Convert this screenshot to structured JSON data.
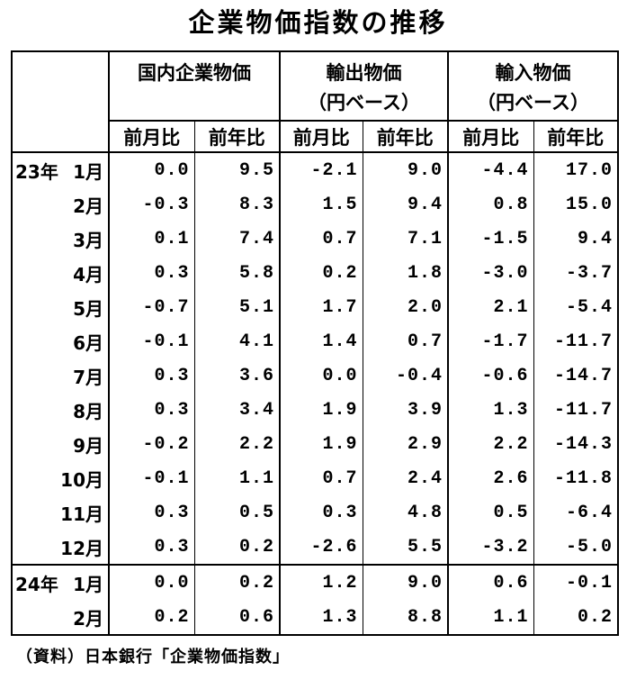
{
  "title": "企業物価指数の推移",
  "table": {
    "groups": [
      {
        "line1": "国内企業物価",
        "line2": ""
      },
      {
        "line1": "輸出物価",
        "line2": "（円ベース）"
      },
      {
        "line1": "輸入物価",
        "line2": "（円ベース）"
      }
    ],
    "sub_headers": [
      "前月比",
      "前年比",
      "前月比",
      "前年比",
      "前月比",
      "前年比"
    ],
    "rows": [
      {
        "year": "23年",
        "month": "1月",
        "values": [
          "0.0",
          "9.5",
          "-2.1",
          "9.0",
          "-4.4",
          "17.0"
        ]
      },
      {
        "year": "",
        "month": "2月",
        "values": [
          "-0.3",
          "8.3",
          "1.5",
          "9.4",
          "0.8",
          "15.0"
        ]
      },
      {
        "year": "",
        "month": "3月",
        "values": [
          "0.1",
          "7.4",
          "0.7",
          "7.1",
          "-1.5",
          "9.4"
        ]
      },
      {
        "year": "",
        "month": "4月",
        "values": [
          "0.3",
          "5.8",
          "0.2",
          "1.8",
          "-3.0",
          "-3.7"
        ]
      },
      {
        "year": "",
        "month": "5月",
        "values": [
          "-0.7",
          "5.1",
          "1.7",
          "2.0",
          "2.1",
          "-5.4"
        ]
      },
      {
        "year": "",
        "month": "6月",
        "values": [
          "-0.1",
          "4.1",
          "1.4",
          "0.7",
          "-1.7",
          "-11.7"
        ]
      },
      {
        "year": "",
        "month": "7月",
        "values": [
          "0.3",
          "3.6",
          "0.0",
          "-0.4",
          "-0.6",
          "-14.7"
        ]
      },
      {
        "year": "",
        "month": "8月",
        "values": [
          "0.3",
          "3.4",
          "1.9",
          "3.9",
          "1.3",
          "-11.7"
        ]
      },
      {
        "year": "",
        "month": "9月",
        "values": [
          "-0.2",
          "2.2",
          "1.9",
          "2.9",
          "2.2",
          "-14.3"
        ]
      },
      {
        "year": "",
        "month": "10月",
        "values": [
          "-0.1",
          "1.1",
          "0.7",
          "2.4",
          "2.6",
          "-11.8"
        ]
      },
      {
        "year": "",
        "month": "11月",
        "values": [
          "0.3",
          "0.5",
          "0.3",
          "4.8",
          "0.5",
          "-6.4"
        ]
      },
      {
        "year": "",
        "month": "12月",
        "values": [
          "0.3",
          "0.2",
          "-2.6",
          "5.5",
          "-3.2",
          "-5.0"
        ]
      },
      {
        "year": "24年",
        "month": "1月",
        "values": [
          "0.0",
          "0.2",
          "1.2",
          "9.0",
          "0.6",
          "-0.1"
        ]
      },
      {
        "year": "",
        "month": "2月",
        "values": [
          "0.2",
          "0.6",
          "1.3",
          "8.8",
          "1.1",
          "0.2"
        ]
      }
    ]
  },
  "source_note": "（資料）日本銀行「企業物価指数」",
  "colors": {
    "text": "#000000",
    "background": "#ffffff",
    "border": "#000000"
  }
}
